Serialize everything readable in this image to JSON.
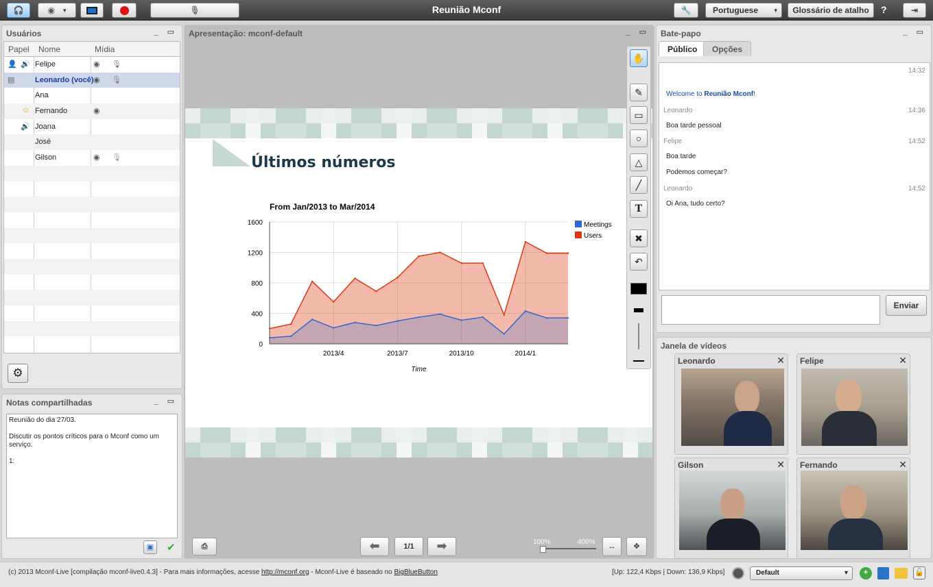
{
  "app": {
    "title": "Reunião Mconf",
    "language": "Portuguese",
    "shortcuts_label": "Glossário de atalho",
    "help": "?"
  },
  "users": {
    "title": "Usuários",
    "columns": {
      "role": "Papel",
      "name": "Nome",
      "media": "Mídia"
    },
    "rows": [
      {
        "name": "Felipe"
      },
      {
        "name": "Leonardo (você)"
      },
      {
        "name": "Ana"
      },
      {
        "name": "Fernando"
      },
      {
        "name": "Joana"
      },
      {
        "name": "José"
      },
      {
        "name": "Gilson"
      }
    ]
  },
  "presentation": {
    "title": "Apresentação: mconf-default",
    "slide_title": "Últimos números",
    "page": "1/1",
    "zoom_min": "100%",
    "zoom_max": "400%"
  },
  "chart_data": {
    "type": "area",
    "title": "From Jan/2013 to Mar/2014",
    "xlabel": "Time",
    "ylabel": "",
    "ylim": [
      0,
      1600
    ],
    "yticks": [
      "0",
      "400",
      "800",
      "1200",
      "1600"
    ],
    "xticks": [
      "2013/4",
      "2013/7",
      "2013/10",
      "2014/1"
    ],
    "x": [
      "2013/1",
      "2013/2",
      "2013/3",
      "2013/4",
      "2013/5",
      "2013/6",
      "2013/7",
      "2013/8",
      "2013/9",
      "2013/10",
      "2013/11",
      "2013/12",
      "2014/1",
      "2014/2",
      "2014/3"
    ],
    "series": [
      {
        "name": "Meetings",
        "color": "#3366cc",
        "values": [
          80,
          100,
          320,
          210,
          280,
          240,
          300,
          350,
          390,
          310,
          350,
          130,
          430,
          340,
          340
        ]
      },
      {
        "name": "Users",
        "color": "#dc3912",
        "values": [
          200,
          260,
          820,
          550,
          860,
          690,
          870,
          1150,
          1200,
          1060,
          1060,
          380,
          1340,
          1190,
          1190
        ]
      }
    ]
  },
  "chat": {
    "title": "Bate-papo",
    "tabs": [
      "Público",
      "Opções"
    ],
    "send": "Enviar",
    "welcome_prefix": "Welcome to ",
    "welcome_name": "Reunião Mconf",
    "welcome_suffix": "!",
    "welcome_time": "14:32",
    "messages": [
      {
        "author": "Leonardo",
        "time": "14:36",
        "lines": [
          "Boa tarde pessoal"
        ]
      },
      {
        "author": "Felipe",
        "time": "14:52",
        "lines": [
          "Boa tarde",
          "Podemos começar?"
        ]
      },
      {
        "author": "Leonardo",
        "time": "14:52",
        "lines": [
          "Oi Ana, tudo certo?"
        ]
      }
    ]
  },
  "notes": {
    "title": "Notas compartilhadas",
    "text": "Reunião do dia 27/03.\n\nDiscutir os pontos críticos para o Mconf como um serviço.\n\n1:"
  },
  "videos": {
    "title": "Janela de vídeos",
    "windows": [
      {
        "name": "Leonardo"
      },
      {
        "name": "Felipe"
      },
      {
        "name": "Gilson"
      },
      {
        "name": "Fernando"
      }
    ]
  },
  "footer": {
    "copyright": "(c) 2013 Mconf-Live [compilação mconf-live0.4.3] - Para mais informações, acesse ",
    "link1": "http://mconf.org",
    "middle": " - Mconf-Live é baseado no ",
    "link2": "BigBlueButton",
    "bandwidth": "[Up: 122,4 Kbps | Down: 136,9 Kbps]",
    "layout": "Default"
  }
}
